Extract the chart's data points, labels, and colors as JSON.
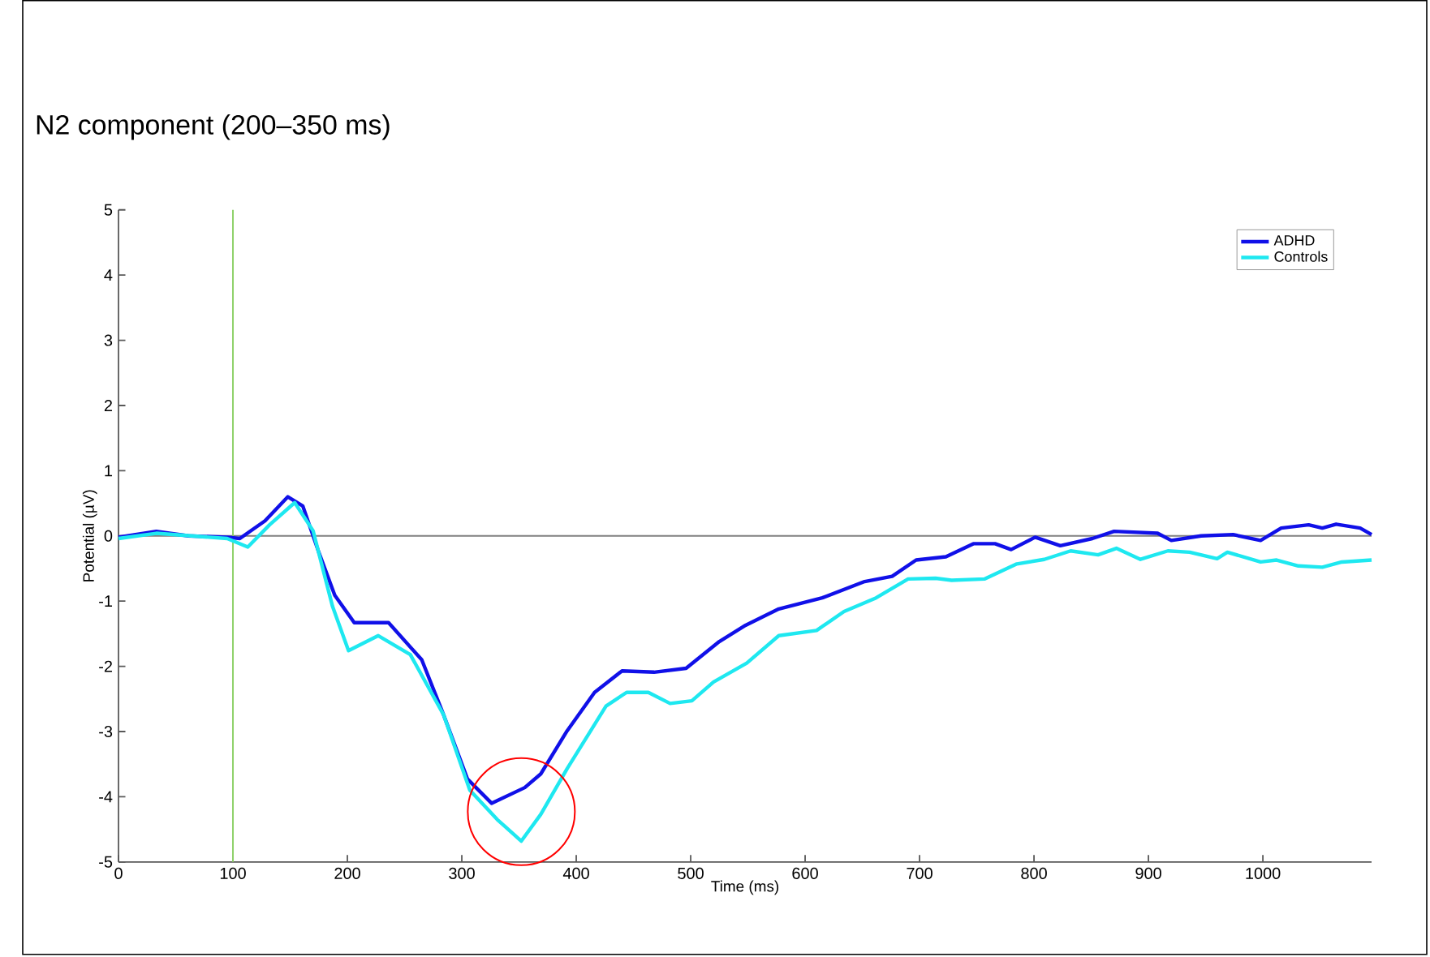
{
  "chart_data": {
    "type": "line",
    "title": "N2 component  (200–350 ms)",
    "xlabel": "Time (ms)",
    "ylabel": "Potential (µV)",
    "xlim": [
      0,
      1095
    ],
    "ylim": [
      -5,
      5
    ],
    "xticks": [
      0,
      100,
      200,
      300,
      400,
      500,
      600,
      700,
      800,
      900,
      1000
    ],
    "yticks": [
      -5,
      -4,
      -3,
      -2,
      -1,
      0,
      1,
      2,
      3,
      4,
      5
    ],
    "grid": false,
    "legend": "top right",
    "marker": "none",
    "line_style": "solid",
    "ref_lines": [
      {
        "axis": "y",
        "value": 0,
        "color": "#808080"
      },
      {
        "axis": "x",
        "value": 100,
        "color": "#8fd16a"
      }
    ],
    "series": [
      {
        "name": "ADHD",
        "color": "#1010e8",
        "x": [
          0,
          33,
          61,
          95,
          106,
          128,
          148,
          161,
          175,
          189,
          206,
          236,
          265,
          284,
          305,
          326,
          355,
          369,
          392,
          416,
          440,
          468,
          496,
          525,
          548,
          577,
          615,
          652,
          676,
          697,
          723,
          747,
          766,
          780,
          801,
          823,
          851,
          870,
          908,
          920,
          946,
          974,
          998,
          1016,
          1040,
          1052,
          1064,
          1085,
          1095
        ],
        "values": [
          -0.02,
          0.07,
          0,
          -0.02,
          -0.04,
          0.23,
          0.6,
          0.46,
          -0.25,
          -0.91,
          -1.33,
          -1.33,
          -1.9,
          -2.74,
          -3.73,
          -4.1,
          -3.86,
          -3.65,
          -2.99,
          -2.4,
          -2.07,
          -2.09,
          -2.03,
          -1.62,
          -1.37,
          -1.12,
          -0.95,
          -0.7,
          -0.62,
          -0.37,
          -0.32,
          -0.12,
          -0.12,
          -0.21,
          -0.02,
          -0.15,
          -0.04,
          0.07,
          0.04,
          -0.07,
          0,
          0.02,
          -0.07,
          0.12,
          0.17,
          0.12,
          0.18,
          0.12,
          0.02
        ]
      },
      {
        "name": "Controls",
        "color": "#1ee8f0",
        "x": [
          0,
          33,
          95,
          113,
          132,
          154,
          170,
          187,
          201,
          227,
          255,
          284,
          307,
          331,
          352,
          369,
          392,
          426,
          444,
          463,
          482,
          501,
          520,
          549,
          577,
          610,
          634,
          662,
          690,
          714,
          728,
          757,
          785,
          809,
          832,
          856,
          872,
          893,
          917,
          936,
          960,
          969,
          998,
          1012,
          1031,
          1052,
          1069,
          1095
        ],
        "values": [
          -0.04,
          0.04,
          -0.04,
          -0.17,
          0.17,
          0.51,
          0.08,
          -1.08,
          -1.76,
          -1.53,
          -1.82,
          -2.74,
          -3.9,
          -4.35,
          -4.68,
          -4.27,
          -3.57,
          -2.61,
          -2.4,
          -2.4,
          -2.57,
          -2.53,
          -2.24,
          -1.95,
          -1.53,
          -1.45,
          -1.16,
          -0.95,
          -0.66,
          -0.65,
          -0.68,
          -0.66,
          -0.43,
          -0.36,
          -0.23,
          -0.29,
          -0.19,
          -0.36,
          -0.23,
          -0.25,
          -0.35,
          -0.25,
          -0.4,
          -0.37,
          -0.46,
          -0.48,
          -0.4,
          -0.37
        ]
      }
    ]
  }
}
